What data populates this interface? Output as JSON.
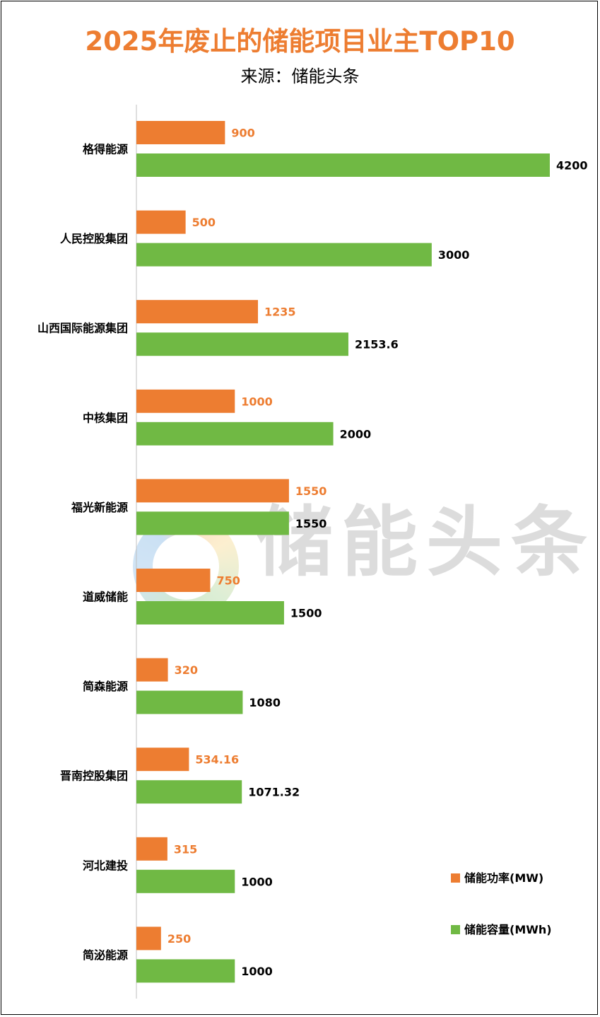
{
  "header": {
    "title": "2025年废止的储能项目业主TOP10",
    "subtitle": "来源：储能头条"
  },
  "watermark": {
    "text": "储能头条"
  },
  "colors": {
    "power": "#ED7D31",
    "capacity": "#70B944",
    "title": "#ED7D31"
  },
  "chart_data": {
    "type": "bar",
    "orientation": "horizontal",
    "categories": [
      "格得能源",
      "人民控股集团",
      "山西国际能源集团",
      "中核集团",
      "福光新能源",
      "道威储能",
      "简森能源",
      "晋南控股集团",
      "河北建投",
      "简泌能源"
    ],
    "series": [
      {
        "name": "储能功率(MW)",
        "color": "#ED7D31",
        "values": [
          900,
          500,
          1235,
          1000,
          1550,
          750,
          320,
          534.16,
          315,
          250
        ],
        "labels": [
          "900",
          "500",
          "1235",
          "1000",
          "1550",
          "750",
          "320",
          "534.16",
          "315",
          "250"
        ]
      },
      {
        "name": "储能容量(MWh)",
        "color": "#70B944",
        "values": [
          4200,
          3000,
          2153.6,
          2000,
          1550,
          1500,
          1080,
          1071.32,
          1000,
          1000
        ],
        "labels": [
          "4200",
          "3000",
          "2153.6",
          "2000",
          "1550",
          "1500",
          "1080",
          "1071.32",
          "1000",
          "1000"
        ]
      }
    ],
    "xlim": [
      0,
      4200
    ],
    "grid": false,
    "legend_position": "bottom-right"
  }
}
